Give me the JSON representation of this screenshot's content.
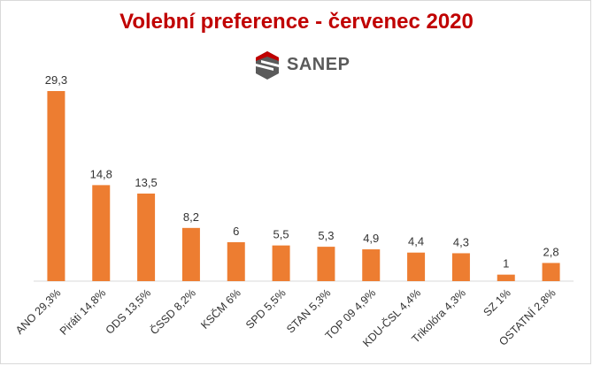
{
  "chart_data": {
    "type": "bar",
    "title": "Volební preference - červenec 2020",
    "categories": [
      "ANO 29,3%",
      "Piráti 14,8%",
      "ODS 13,5%",
      "ČSSD 8,2%",
      "KSČM 6%",
      "SPD 5,5%",
      "STAN 5,3%",
      "TOP 09 4,9%",
      "KDU-ČSL 4,4%",
      "Trikolóra 4,3%",
      "SZ 1%",
      "OSTATNÍ 2,8%"
    ],
    "values": [
      29.3,
      14.8,
      13.5,
      8.2,
      6,
      5.5,
      5.3,
      4.9,
      4.4,
      4.3,
      1,
      2.8
    ],
    "value_labels": [
      "29,3",
      "14,8",
      "13,5",
      "8,2",
      "6",
      "5,5",
      "5,3",
      "4,9",
      "4,4",
      "4,3",
      "1",
      "2,8"
    ],
    "xlabel": "",
    "ylabel": "",
    "ylim": [
      0,
      29.3
    ],
    "grid": false,
    "legend": "none",
    "bar_color": "#ed7d31"
  },
  "logo": {
    "text": "SANEP",
    "icon": "sanep-s-logo-icon"
  },
  "colors": {
    "title": "#c00000",
    "logo_red": "#c00000",
    "logo_gray": "#5a5a5a"
  }
}
